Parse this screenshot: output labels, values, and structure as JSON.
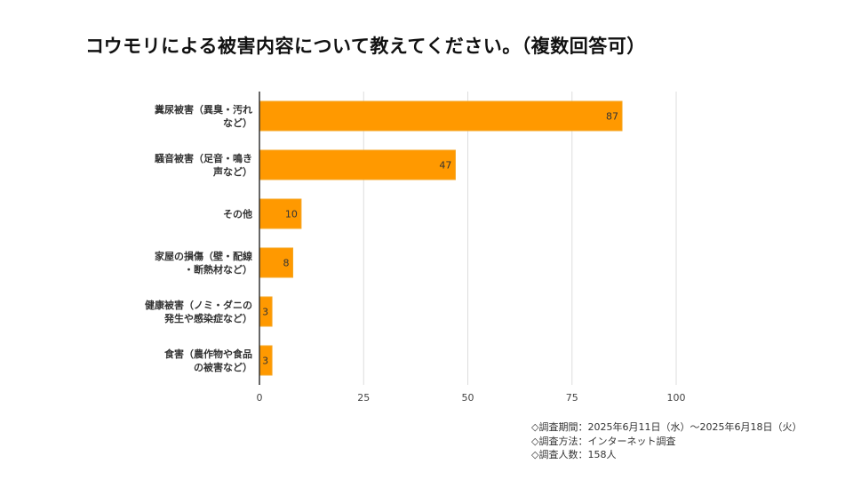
{
  "title": "コウモリによる被害内容について教えてください。（複数回答可）",
  "colors": {
    "bar": "#FF9900",
    "bar_border": "#F5A623",
    "grid": "#dddddd",
    "axis": "#333333"
  },
  "chart_data": {
    "type": "bar",
    "orientation": "horizontal",
    "title": "コウモリによる被害内容について教えてください。（複数回答可）",
    "categories": [
      [
        "糞尿被害（異臭・汚れ",
        "など）"
      ],
      [
        "騒音被害（足音・鳴き",
        "声など）"
      ],
      [
        "その他"
      ],
      [
        "家屋の損傷（壁・配線",
        "・断熱材など）"
      ],
      [
        "健康被害（ノミ・ダニの",
        "発生や感染症など）"
      ],
      [
        "食害（農作物や食品",
        "の被害など）"
      ]
    ],
    "values": [
      87,
      47,
      10,
      8,
      3,
      3
    ],
    "xlim": [
      0,
      100
    ],
    "xticks": [
      0,
      25,
      50,
      75,
      100
    ],
    "xlabel": "",
    "ylabel": "",
    "grid": true,
    "legend": "none"
  },
  "notes": [
    "◇調査期間：2025年6月11日（水）〜2025年6月18日（火）",
    "◇調査方法：インターネット調査",
    "◇調査人数：158人"
  ]
}
